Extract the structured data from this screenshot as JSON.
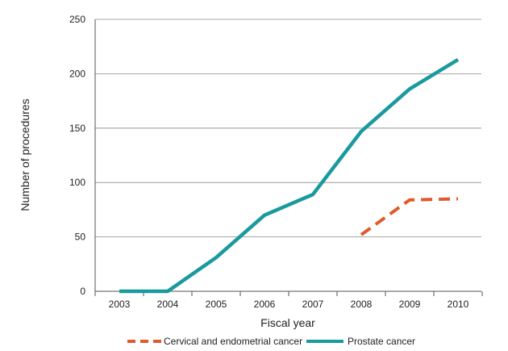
{
  "chart_data": {
    "type": "line",
    "x": [
      "2003",
      "2004",
      "2005",
      "2006",
      "2007",
      "2008",
      "2009",
      "2010"
    ],
    "series": [
      {
        "name": "Cervical and endometrial cancer",
        "values": [
          null,
          null,
          null,
          null,
          null,
          52,
          84,
          85
        ],
        "color": "#e05a2b",
        "dashed": true
      },
      {
        "name": "Prostate cancer",
        "values": [
          0,
          0,
          31,
          70,
          89,
          147,
          186,
          213
        ],
        "color": "#1a9a9e",
        "dashed": false
      }
    ],
    "xlabel": "Fiscal year",
    "ylabel": "Number of procedures",
    "ylim": [
      0,
      250
    ],
    "yticks": [
      0,
      50,
      100,
      150,
      200,
      250
    ],
    "grid": "horizontal",
    "legend_position": "bottom"
  }
}
